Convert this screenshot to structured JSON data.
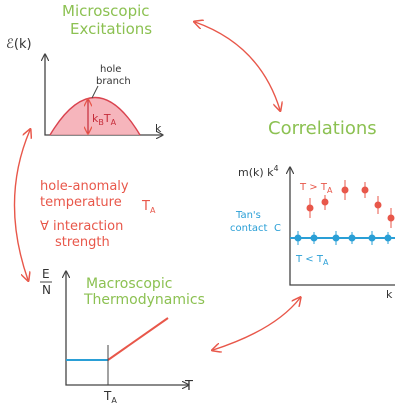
{
  "excitations": {
    "title": [
      "Microscopic",
      "Excitations"
    ],
    "y_label": "ℰ(k)",
    "x_label": "k",
    "branch_label": [
      "hole",
      "branch"
    ],
    "energy_label": [
      {
        "text": "k",
        "sub": "B"
      },
      {
        "text": "T",
        "sub": "A"
      }
    ]
  },
  "correlations": {
    "title": "Correlations",
    "y_label": {
      "text": "m(k) k",
      "sup": "4"
    },
    "high_label": {
      "text": "T > T",
      "sub": "A"
    },
    "contact_label": [
      "Tan's",
      "contact",
      "C"
    ],
    "low_label": {
      "text": "T < T",
      "sub": "A"
    },
    "x_label": "k"
  },
  "anomaly": {
    "lines": [
      "hole-anomaly",
      "temperature"
    ],
    "symbol": {
      "text": "T",
      "sub": "A"
    },
    "condition": [
      "∀ interaction",
      "strength"
    ]
  },
  "thermodynamics": {
    "title": [
      "Macroscopic",
      "Thermodynamics"
    ],
    "y_label": {
      "numerator": "E",
      "denominator": "N"
    },
    "x_label": "T",
    "tick": {
      "text": "T",
      "sub": "A"
    }
  }
}
